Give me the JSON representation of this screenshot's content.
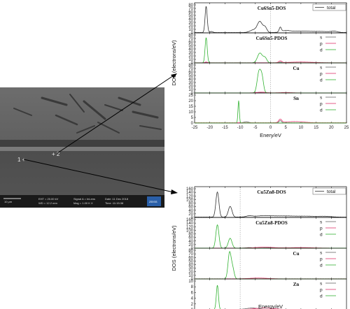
{
  "sem": {
    "points": [
      "1 +",
      "+ 2"
    ],
    "scale": "10 μm",
    "info_col1": [
      "EHT = 20.00 kV",
      "WD = 12.2 mm"
    ],
    "info_col2": [
      "Signal A = InLens",
      "Mag = 1.00 K X"
    ],
    "info_col3": [
      "Date :11 Dec 2018",
      "Time :11:15:38"
    ],
    "logo": "ZEISS"
  },
  "colors": {
    "total": "#333333",
    "s": "#666666",
    "p": "#e0336b",
    "d": "#33b333",
    "axis": "#000000",
    "arrow": "#000000"
  },
  "chart_data": [
    {
      "type": "line",
      "compound": "Cu6Sn5",
      "ylabel": "DOS (electrons/eV)",
      "xlabel": "Enery/eV",
      "xlim": [
        -25,
        25
      ],
      "xticks": [
        -25,
        -20,
        -15,
        -10,
        -5,
        0,
        5,
        10,
        15,
        20,
        25
      ],
      "fermi_line_x": 0,
      "panels": [
        {
          "label": "Cu6Sn5-DOS",
          "ylim": [
            0,
            80
          ],
          "yticks": [
            0,
            10,
            20,
            30,
            40,
            50,
            60,
            70,
            80
          ],
          "legend": [
            "total"
          ],
          "series": [
            {
              "name": "total",
              "color": "total",
              "peaks": [
                [
                  -21.2,
                  75,
                  0.35
                ],
                [
                  -19.5,
                  3,
                  0.5
                ],
                [
                  -5.5,
                  8,
                  1.2
                ],
                [
                  -3.5,
                  30,
                  0.8
                ],
                [
                  -1.8,
                  15,
                  0.6
                ],
                [
                  3.2,
                  13,
                  0.35
                ],
                [
                  5,
                  5,
                  1.5
                ],
                [
                  10,
                  4,
                  3
                ],
                [
                  17,
                  3,
                  3
                ],
                [
                  21,
                  3,
                  1
                ]
              ],
              "base": 1
            }
          ]
        },
        {
          "label": "Cu6Sn5-PDOS",
          "ylim": [
            0,
            80
          ],
          "yticks": [
            0,
            10,
            20,
            30,
            40,
            50,
            60,
            70,
            80
          ],
          "legend": [
            "s",
            "p",
            "d"
          ],
          "series": [
            {
              "name": "s",
              "color": "s",
              "peaks": [
                [
                  -21.2,
                  2,
                  0.4
                ],
                [
                  3.2,
                  2,
                  0.4
                ]
              ],
              "base": 0.3
            },
            {
              "name": "p",
              "color": "p",
              "peaks": [
                [
                  -21.2,
                  2,
                  0.4
                ],
                [
                  3.2,
                  5,
                  0.5
                ],
                [
                  10,
                  2,
                  4
                ]
              ],
              "base": 0.5
            },
            {
              "name": "d",
              "color": "d",
              "peaks": [
                [
                  -21.2,
                  72,
                  0.35
                ],
                [
                  -3.5,
                  28,
                  0.8
                ],
                [
                  -1.8,
                  14,
                  0.6
                ]
              ],
              "base": 0.2
            }
          ]
        },
        {
          "label": "Cu",
          "ylim": [
            0,
            80
          ],
          "yticks": [
            0,
            10,
            20,
            30,
            40,
            50,
            60,
            70,
            80
          ],
          "legend": [
            "s",
            "p",
            "d"
          ],
          "series": [
            {
              "name": "s",
              "color": "s",
              "peaks": [
                [
                  -3.5,
                  1,
                  1
                ]
              ],
              "base": 0.2
            },
            {
              "name": "p",
              "color": "p",
              "peaks": [
                [
                  -3,
                  2,
                  1.5
                ],
                [
                  5,
                  1,
                  2
                ]
              ],
              "base": 0.3
            },
            {
              "name": "d",
              "color": "d",
              "peaks": [
                [
                  -3.8,
                  60,
                  0.6
                ],
                [
                  -2.8,
                  40,
                  0.5
                ]
              ],
              "base": 0.1
            }
          ]
        },
        {
          "label": "Sn",
          "ylim": [
            0,
            25
          ],
          "yticks": [
            0,
            5,
            10,
            15,
            20,
            25
          ],
          "legend": [
            "s",
            "p",
            "d"
          ],
          "series": [
            {
              "name": "s",
              "color": "s",
              "peaks": [
                [
                  -8,
                  1,
                  0.8
                ],
                [
                  3.2,
                  2,
                  0.4
                ]
              ],
              "base": 0.2
            },
            {
              "name": "p",
              "color": "p",
              "peaks": [
                [
                  3.2,
                  3,
                  0.5
                ],
                [
                  8,
                  1,
                  3
                ]
              ],
              "base": 0.3
            },
            {
              "name": "d",
              "color": "d",
              "peaks": [
                [
                  -10.5,
                  20,
                  0.22
                ]
              ],
              "base": 0.1
            }
          ]
        }
      ]
    },
    {
      "type": "line",
      "compound": "Cu5Zn8",
      "ylabel": "DOS (electrons/eV)",
      "xlabel": "Energy/eV",
      "xlim": [
        -15,
        35
      ],
      "xticks": [
        -10,
        -5,
        0,
        5,
        10,
        15,
        20,
        25,
        30
      ],
      "fermi_line_x": 0,
      "panels": [
        {
          "label": "Cu5Zn8-DOS",
          "ylim": [
            0,
            160
          ],
          "yticks": [
            0,
            20,
            40,
            60,
            80,
            100,
            120,
            140,
            160
          ],
          "legend": [
            "total"
          ],
          "series": [
            {
              "name": "total",
              "color": "total",
              "peaks": [
                [
                  -7.5,
                  140,
                  0.5
                ],
                [
                  -3.3,
                  60,
                  0.6
                ],
                [
                  3,
                  6,
                  1
                ],
                [
                  8,
                  8,
                  3
                ],
                [
                  15,
                  6,
                  3
                ],
                [
                  22,
                  5,
                  3
                ],
                [
                  28,
                  4,
                  2
                ]
              ],
              "base": 2
            }
          ]
        },
        {
          "label": "Cu5Zn8-PDOS",
          "ylim": [
            0,
            160
          ],
          "yticks": [
            0,
            20,
            40,
            60,
            80,
            100,
            120,
            140,
            160
          ],
          "legend": [
            "s",
            "p",
            "d"
          ],
          "series": [
            {
              "name": "s",
              "color": "s",
              "peaks": [
                [
                  3,
                  3,
                  1
                ],
                [
                  12,
                  2,
                  4
                ]
              ],
              "base": 0.5
            },
            {
              "name": "p",
              "color": "p",
              "peaks": [
                [
                  8,
                  5,
                  3
                ],
                [
                  20,
                  3,
                  4
                ]
              ],
              "base": 0.5
            },
            {
              "name": "d",
              "color": "d",
              "peaks": [
                [
                  -7.5,
                  130,
                  0.5
                ],
                [
                  -3.3,
                  55,
                  0.6
                ]
              ],
              "base": 0.3
            }
          ]
        },
        {
          "label": "Cu",
          "ylim": [
            0,
            80
          ],
          "yticks": [
            0,
            10,
            20,
            30,
            40,
            50,
            60,
            70,
            80
          ],
          "legend": [
            "s",
            "p",
            "d"
          ],
          "series": [
            {
              "name": "s",
              "color": "s",
              "peaks": [
                [
                  3,
                  1,
                  1
                ]
              ],
              "base": 0.3
            },
            {
              "name": "p",
              "color": "p",
              "peaks": [
                [
                  6,
                  2,
                  3
                ]
              ],
              "base": 0.4
            },
            {
              "name": "d",
              "color": "d",
              "peaks": [
                [
                  -3.5,
                  72,
                  0.5
                ],
                [
                  -2.5,
                  30,
                  0.5
                ]
              ],
              "base": 0.1
            }
          ]
        },
        {
          "label": "Zn",
          "ylim": [
            0,
            10
          ],
          "yticks": [
            0,
            2,
            4,
            6,
            8,
            10
          ],
          "legend": [
            "s",
            "p",
            "d"
          ],
          "series": [
            {
              "name": "s",
              "color": "s",
              "peaks": [
                [
                  4,
                  0.5,
                  2
                ]
              ],
              "base": 0.1
            },
            {
              "name": "p",
              "color": "p",
              "peaks": [
                [
                  8,
                  0.5,
                  3
                ]
              ],
              "base": 0.1
            },
            {
              "name": "d",
              "color": "d",
              "peaks": [
                [
                  -7.5,
                  8.5,
                  0.35
                ]
              ],
              "base": 0.05
            }
          ]
        }
      ]
    }
  ]
}
